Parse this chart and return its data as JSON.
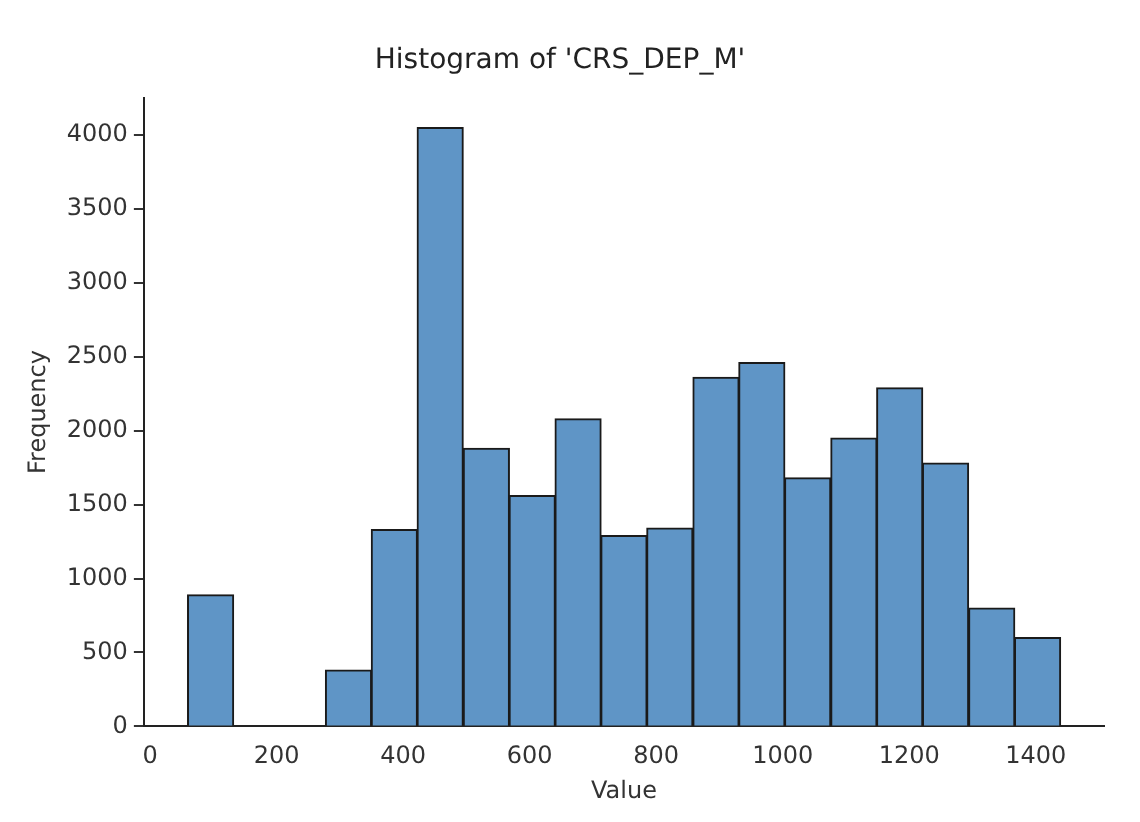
{
  "chart_data": {
    "type": "histogram",
    "title": "Histogram of 'CRS_DEP_M'",
    "xlabel": "Value",
    "ylabel": "Frequency",
    "bins": [
      59,
      132,
      204,
      277,
      350,
      422,
      495,
      568,
      640,
      713,
      785,
      858,
      931,
      1003,
      1076,
      1149,
      1221,
      1294,
      1367,
      1439
    ],
    "values": [
      890,
      0,
      0,
      380,
      1330,
      4050,
      1880,
      1560,
      2080,
      1290,
      1340,
      2360,
      2460,
      1680,
      1950,
      2290,
      1780,
      800,
      600
    ],
    "color": "#5f95c6",
    "xlim": [
      -10,
      1508
    ],
    "ylim": [
      0,
      4253
    ],
    "xticks": [
      0,
      200,
      400,
      600,
      800,
      1000,
      1200,
      1400
    ],
    "yticks": [
      0,
      500,
      1000,
      1500,
      2000,
      2500,
      3000,
      3500,
      4000
    ],
    "grid": false,
    "legend": false
  }
}
